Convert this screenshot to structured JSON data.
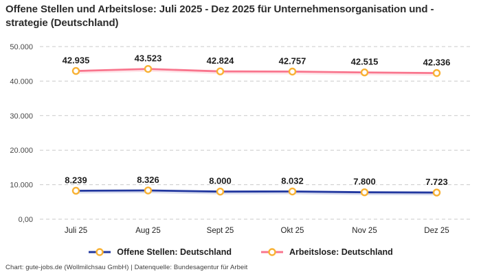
{
  "header": {
    "title": "Offene Stellen und Arbeitslose: Juli 2025 - Dez 2025 für Unternehmensorganisation und -strategie (Deutschland)"
  },
  "footer": {
    "text": "Chart: gute-jobs.de (Wollmilchsau GmbH) | Datenquelle: Bundesagentur für Arbeit"
  },
  "colors": {
    "open_positions_line": "#21379f",
    "unemployed_line": "#f9758d",
    "marker_ring": "#f8b133",
    "marker_fill": "#ffffff",
    "grid": "#c9c9c9",
    "label_text": "#1d1d1d"
  },
  "chart_data": {
    "type": "line",
    "title": "Offene Stellen und Arbeitslose: Juli 2025 - Dez 2025 für Unternehmensorganisation und -strategie (Deutschland)",
    "categories": [
      "Juli 25",
      "Aug 25",
      "Sept 25",
      "Okt 25",
      "Nov 25",
      "Dez 25"
    ],
    "series": [
      {
        "name": "Offene Stellen: Deutschland",
        "color": "#21379f",
        "values": [
          8239,
          8326,
          8000,
          8032,
          7800,
          7723
        ],
        "labels": [
          "8.239",
          "8.326",
          "8.000",
          "8.032",
          "7.800",
          "7.723"
        ]
      },
      {
        "name": "Arbeitslose: Deutschland",
        "color": "#f9758d",
        "values": [
          42935,
          43523,
          42824,
          42757,
          42515,
          42336
        ],
        "labels": [
          "42.935",
          "43.523",
          "42.824",
          "42.757",
          "42.515",
          "42.336"
        ]
      }
    ],
    "marker_color": "#f8b133",
    "grid_color": "#c9c9c9",
    "grid_style": "dashed-horizontal",
    "legend_position": "bottom",
    "ylim": [
      0,
      50000
    ],
    "xlabel": "",
    "ylabel": "",
    "y_ticks": [
      {
        "value": 0,
        "label": "0,00"
      },
      {
        "value": 10000,
        "label": "10.000"
      },
      {
        "value": 20000,
        "label": "20.000"
      },
      {
        "value": 30000,
        "label": "30.000"
      },
      {
        "value": 40000,
        "label": "40.000"
      },
      {
        "value": 50000,
        "label": "50.000"
      }
    ]
  }
}
